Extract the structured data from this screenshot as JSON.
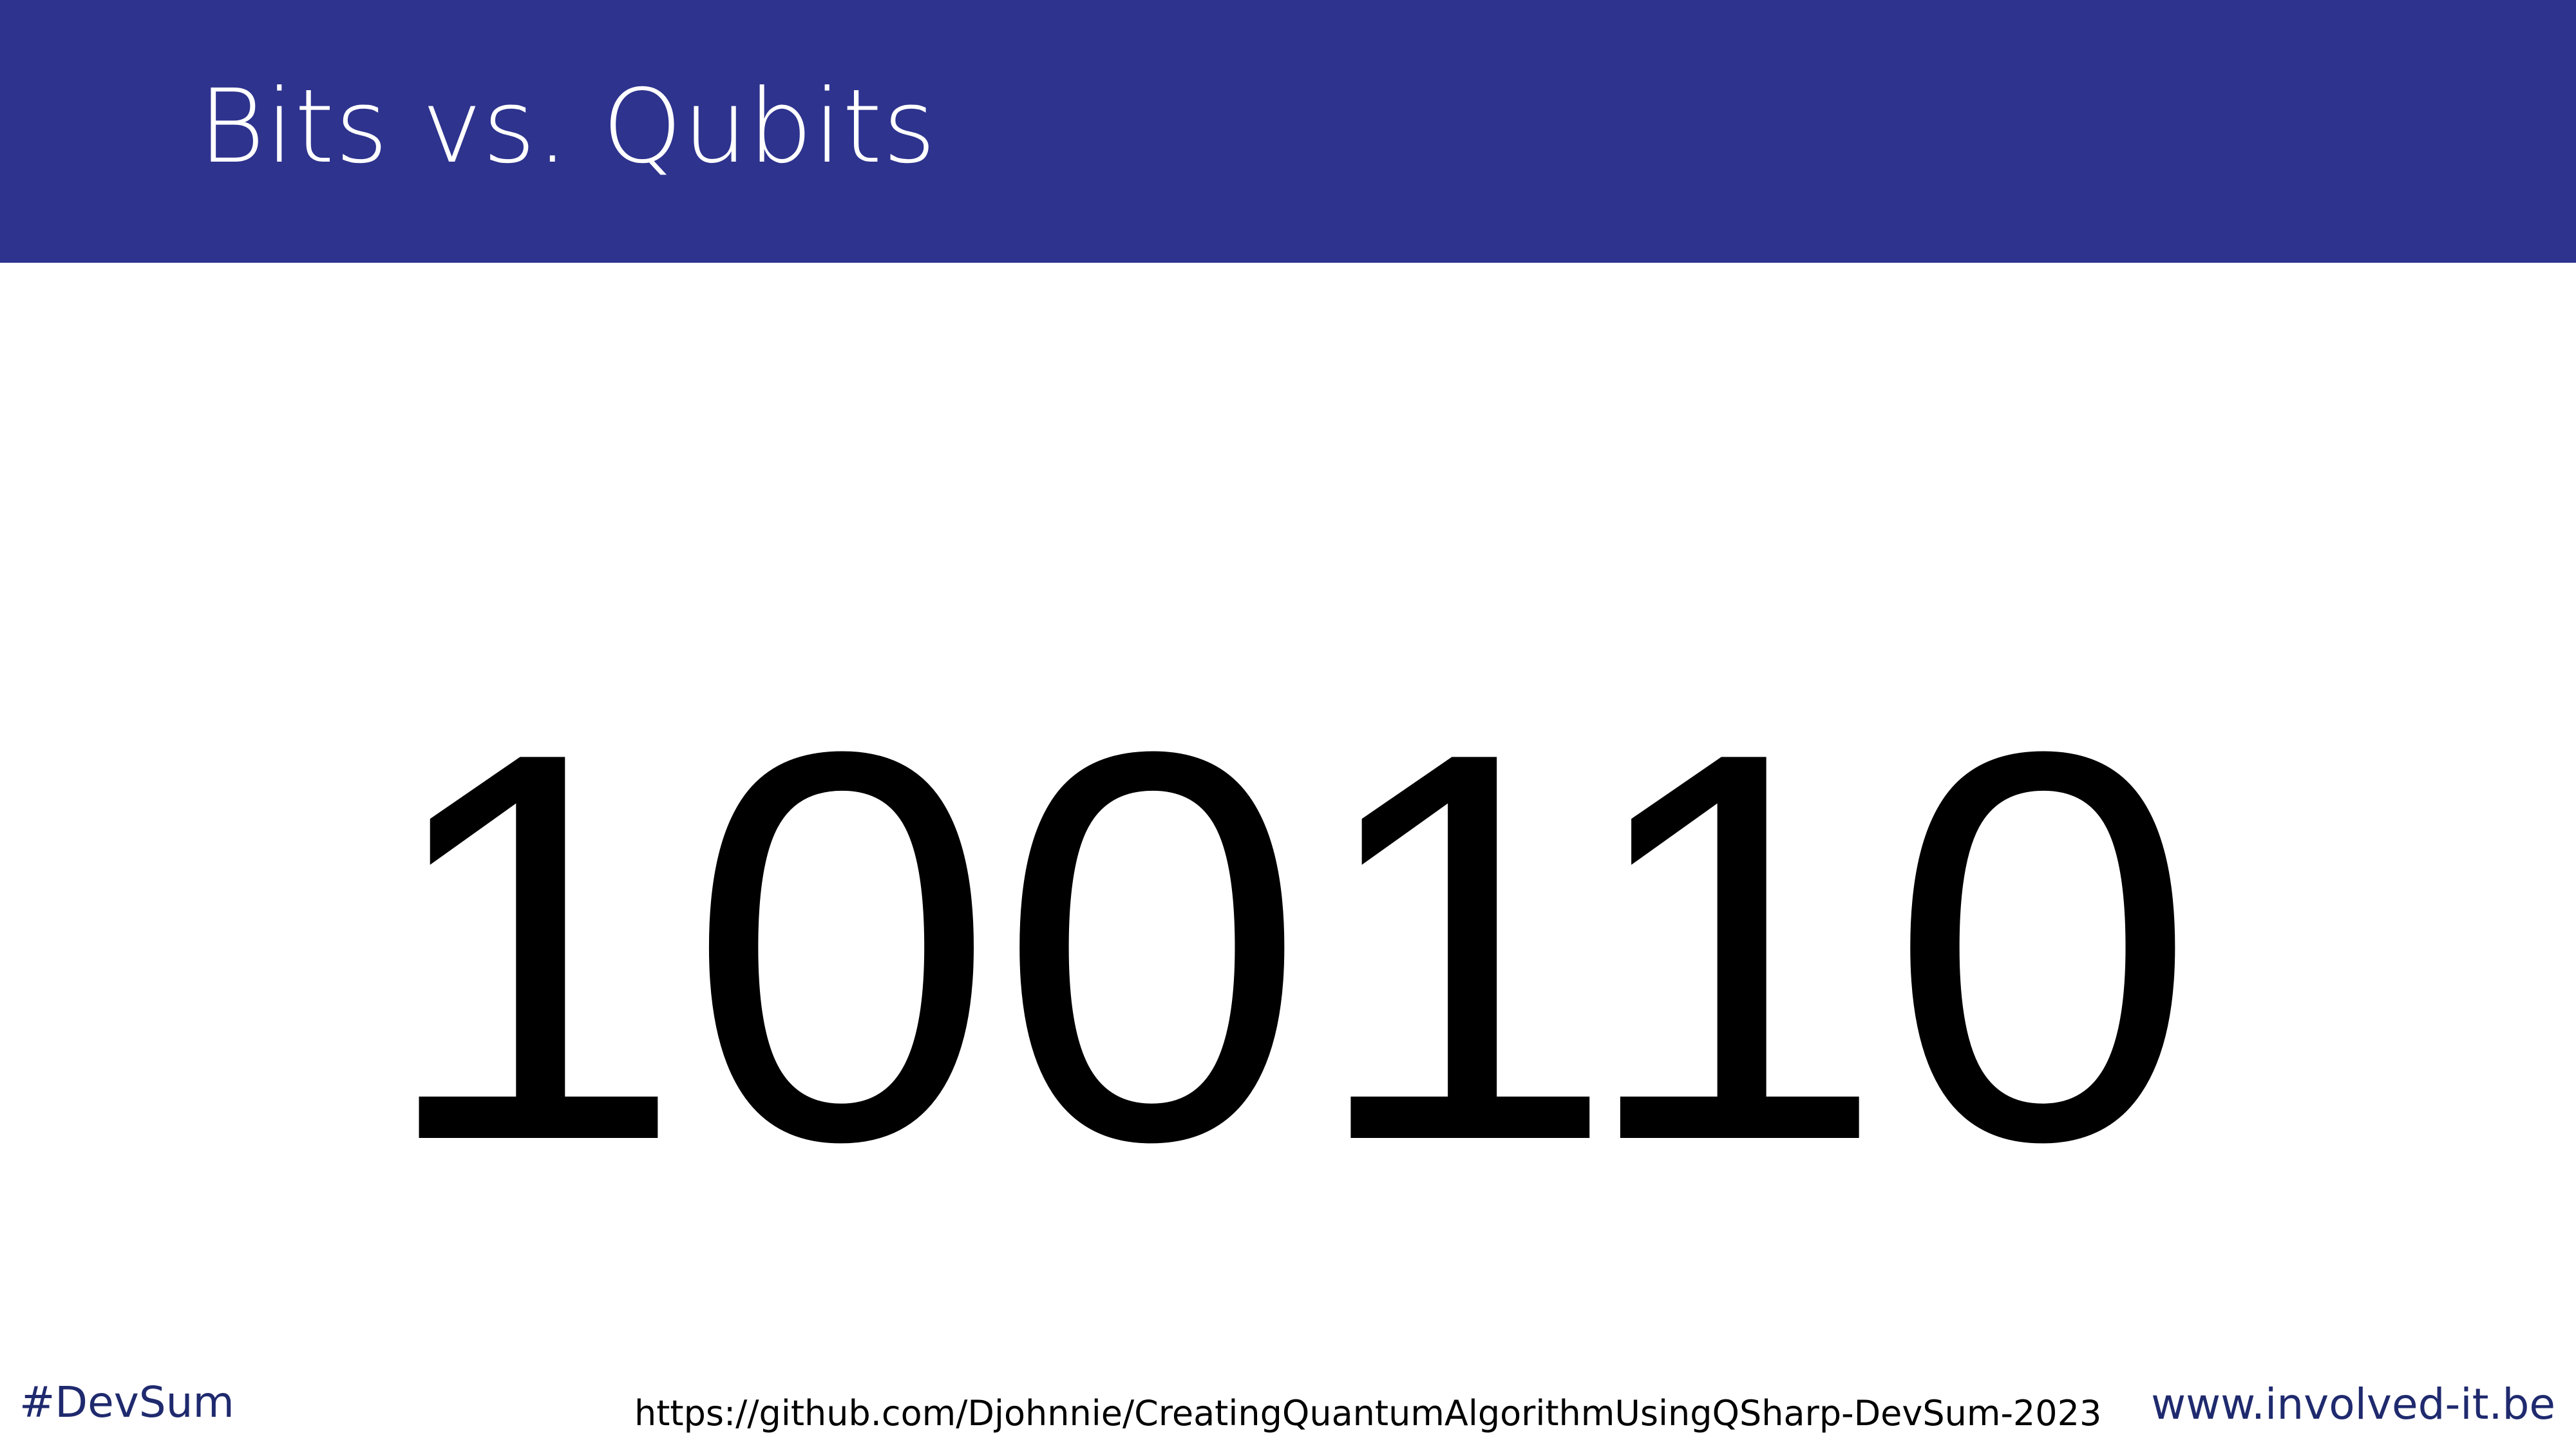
{
  "slide": {
    "title": "Bits vs. Qubits",
    "bits": "100110"
  },
  "footer": {
    "hashtag": "#DevSum",
    "repo_url": "https://github.com/Djohnnie/CreatingQuantumAlgorithmUsingQSharp-DevSum-2023",
    "website": "www.involved-it.be"
  },
  "colors": {
    "title_bar": "#2e338e",
    "title_text": "#ffffff",
    "footer_brand": "#1f2a6e",
    "body_text": "#000000"
  }
}
